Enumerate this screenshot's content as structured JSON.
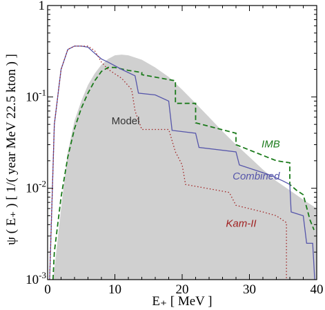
{
  "chart_data": {
    "type": "area",
    "xlabel": "E₊ [ MeV ]",
    "ylabel": "ψ ( E₊ )  [ 1/( year MeV 22.5 kton ) ]",
    "xlim": [
      0,
      40
    ],
    "ylim": [
      0.001,
      1
    ],
    "yscale": "log",
    "x_ticks": [
      0,
      10,
      20,
      30,
      40
    ],
    "y_ticks": [
      {
        "value": 0.001,
        "mantissa": "10",
        "exponent": "-3"
      },
      {
        "value": 0.01,
        "mantissa": "10",
        "exponent": "-2"
      },
      {
        "value": 0.1,
        "mantissa": "10",
        "exponent": "-1"
      },
      {
        "value": 1,
        "mantissa": "1",
        "exponent": ""
      }
    ],
    "grid": false,
    "series": [
      {
        "name": "Model",
        "style": "filled",
        "color": "#d0d0d0",
        "x": [
          0.8,
          1,
          2,
          3,
          4,
          5,
          6,
          7,
          8,
          9,
          10,
          11,
          12,
          14,
          16,
          18,
          20,
          22,
          24,
          26,
          28,
          30,
          32,
          34,
          36,
          38,
          39,
          40
        ],
        "y": [
          0.001,
          0.0013,
          0.006,
          0.025,
          0.055,
          0.09,
          0.135,
          0.18,
          0.225,
          0.26,
          0.285,
          0.29,
          0.285,
          0.255,
          0.21,
          0.165,
          0.12,
          0.085,
          0.06,
          0.042,
          0.03,
          0.022,
          0.016,
          0.012,
          0.0095,
          0.0075,
          0.0067,
          0.006
        ]
      },
      {
        "name": "IMB",
        "style": "dashed",
        "color": "#1a7a1a",
        "x": [
          0.8,
          1,
          2,
          3,
          4,
          5,
          6,
          7,
          8,
          9,
          10,
          12,
          14,
          14,
          19,
          19,
          22,
          22,
          28,
          28,
          34,
          36,
          36,
          37,
          38,
          39,
          39.6
        ],
        "y": [
          0.001,
          0.002,
          0.008,
          0.022,
          0.045,
          0.075,
          0.11,
          0.15,
          0.19,
          0.21,
          0.21,
          0.195,
          0.185,
          0.175,
          0.15,
          0.085,
          0.085,
          0.052,
          0.04,
          0.03,
          0.02,
          0.019,
          0.011,
          0.0095,
          0.0085,
          0.0045,
          0.0035
        ]
      },
      {
        "name": "Combined",
        "style": "solid",
        "color": "#5555aa",
        "x": [
          0.3,
          1,
          2,
          3,
          4,
          5,
          6,
          7,
          8,
          9,
          11,
          13,
          13.5,
          16,
          18,
          18.5,
          22,
          22.5,
          28,
          28.5,
          33,
          35,
          36,
          36.2,
          38,
          38.5,
          39.4,
          39.7
        ],
        "y": [
          0.001,
          0.05,
          0.2,
          0.33,
          0.36,
          0.36,
          0.35,
          0.3,
          0.26,
          0.24,
          0.2,
          0.17,
          0.11,
          0.105,
          0.09,
          0.043,
          0.04,
          0.028,
          0.025,
          0.018,
          0.014,
          0.012,
          0.011,
          0.0055,
          0.005,
          0.0025,
          0.0025,
          0.001
        ]
      },
      {
        "name": "Kam-II",
        "style": "dotted",
        "color": "#a02020",
        "x": [
          0.3,
          1,
          2,
          3,
          4,
          5,
          6,
          7,
          8,
          9,
          11,
          12.5,
          13,
          14,
          18,
          19,
          20,
          20.5,
          27,
          28,
          32,
          34,
          35.5,
          35.5
        ],
        "y": [
          0.001,
          0.05,
          0.2,
          0.33,
          0.36,
          0.36,
          0.36,
          0.32,
          0.24,
          0.2,
          0.16,
          0.12,
          0.07,
          0.044,
          0.044,
          0.025,
          0.018,
          0.011,
          0.009,
          0.0065,
          0.0055,
          0.005,
          0.0042,
          0.001
        ]
      }
    ],
    "annotations": [
      {
        "text": "Model",
        "x": 9.5,
        "y": 0.05,
        "color": "#333333",
        "italic": false
      },
      {
        "text": "IMB",
        "x": 31.8,
        "y": 0.028,
        "color": "#1a7a1a",
        "italic": true
      },
      {
        "text": "Combined",
        "x": 27.5,
        "y": 0.0125,
        "color": "#5555aa",
        "italic": true
      },
      {
        "text": "Kam-II",
        "x": 26.5,
        "y": 0.0038,
        "color": "#a02020",
        "italic": true
      }
    ]
  }
}
